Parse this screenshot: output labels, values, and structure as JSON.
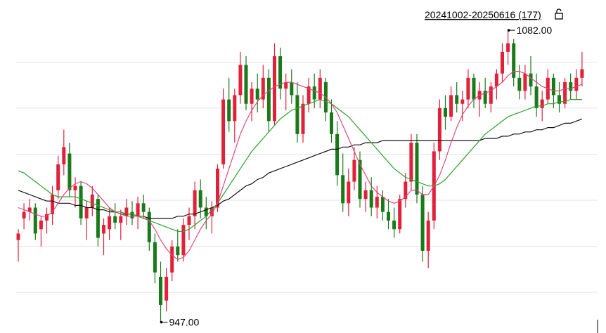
{
  "chart_data": {
    "type": "candlestick",
    "title": "20241002-20250616 (177)",
    "ylim": [
      942,
      1096
    ],
    "ygrid": [
      1067.3,
      1046.0,
      1024.7,
      1003.4,
      982.1,
      960.8
    ],
    "up_color": "#e0213a",
    "down_color": "#1a7a1a",
    "ohlc": [
      [
        985,
        990,
        975,
        988
      ],
      [
        995,
        1002,
        990,
        998
      ],
      [
        998,
        1004,
        994,
        1000
      ],
      [
        1000,
        1002,
        985,
        988
      ],
      [
        990,
        996,
        982,
        994
      ],
      [
        994,
        1000,
        988,
        997
      ],
      [
        997,
        1010,
        992,
        1006
      ],
      [
        1008,
        1024,
        1004,
        1020
      ],
      [
        1020,
        1036,
        1015,
        1028
      ],
      [
        1025,
        1030,
        1005,
        1008
      ],
      [
        1008,
        1014,
        1000,
        1010
      ],
      [
        1010,
        1012,
        992,
        995
      ],
      [
        995,
        1003,
        985,
        1000
      ],
      [
        1000,
        1010,
        996,
        1006
      ],
      [
        1004,
        1006,
        982,
        986
      ],
      [
        988,
        995,
        978,
        992
      ],
      [
        990,
        1000,
        985,
        996
      ],
      [
        996,
        1002,
        990,
        993
      ],
      [
        993,
        999,
        985,
        996
      ],
      [
        996,
        1004,
        992,
        1000
      ],
      [
        998,
        1003,
        992,
        995
      ],
      [
        996,
        1005,
        990,
        1002
      ],
      [
        1002,
        1006,
        995,
        998
      ],
      [
        998,
        1000,
        980,
        984
      ],
      [
        984,
        988,
        965,
        970
      ],
      [
        968,
        975,
        947,
        955
      ],
      [
        957,
        972,
        952,
        968
      ],
      [
        970,
        985,
        966,
        982
      ],
      [
        982,
        990,
        975,
        978
      ],
      [
        978,
        995,
        975,
        992
      ],
      [
        992,
        1000,
        985,
        996
      ],
      [
        996,
        1012,
        990,
        1008
      ],
      [
        1008,
        1013,
        995,
        1000
      ],
      [
        1000,
        1005,
        990,
        996
      ],
      [
        996,
        1003,
        988,
        1000
      ],
      [
        1000,
        1020,
        998,
        1018
      ],
      [
        1020,
        1055,
        1018,
        1050
      ],
      [
        1050,
        1060,
        1035,
        1040
      ],
      [
        1040,
        1055,
        1030,
        1052
      ],
      [
        1052,
        1072,
        1048,
        1066
      ],
      [
        1066,
        1070,
        1045,
        1048
      ],
      [
        1048,
        1058,
        1040,
        1055
      ],
      [
        1055,
        1062,
        1044,
        1050
      ],
      [
        1050,
        1066,
        1046,
        1060
      ],
      [
        1060,
        1064,
        1035,
        1040
      ],
      [
        1040,
        1076,
        1038,
        1070
      ],
      [
        1070,
        1074,
        1050,
        1055
      ],
      [
        1055,
        1062,
        1045,
        1058
      ],
      [
        1058,
        1064,
        1048,
        1052
      ],
      [
        1052,
        1058,
        1030,
        1034
      ],
      [
        1034,
        1052,
        1030,
        1048
      ],
      [
        1048,
        1060,
        1044,
        1056
      ],
      [
        1056,
        1062,
        1046,
        1050
      ],
      [
        1050,
        1064,
        1046,
        1060
      ],
      [
        1058,
        1060,
        1040,
        1044
      ],
      [
        1044,
        1050,
        1030,
        1034
      ],
      [
        1034,
        1040,
        1010,
        1015
      ],
      [
        1015,
        1025,
        998,
        1002
      ],
      [
        1002,
        1018,
        996,
        1012
      ],
      [
        1012,
        1028,
        1008,
        1022
      ],
      [
        1022,
        1026,
        1000,
        1004
      ],
      [
        1004,
        1012,
        998,
        1008
      ],
      [
        1008,
        1014,
        996,
        1000
      ],
      [
        1000,
        1010,
        995,
        1005
      ],
      [
        1005,
        1008,
        994,
        998
      ],
      [
        998,
        1004,
        990,
        994
      ],
      [
        994,
        1000,
        986,
        990
      ],
      [
        990,
        1006,
        988,
        1004
      ],
      [
        1004,
        1016,
        1000,
        1012
      ],
      [
        1012,
        1034,
        1008,
        1030
      ],
      [
        1030,
        1034,
        1002,
        1006
      ],
      [
        1006,
        1010,
        975,
        980
      ],
      [
        980,
        998,
        972,
        994
      ],
      [
        994,
        1030,
        990,
        1026
      ],
      [
        1026,
        1050,
        1022,
        1046
      ],
      [
        1046,
        1052,
        1036,
        1042
      ],
      [
        1042,
        1056,
        1040,
        1052
      ],
      [
        1052,
        1058,
        1044,
        1048
      ],
      [
        1048,
        1054,
        1040,
        1050
      ],
      [
        1050,
        1064,
        1046,
        1060
      ],
      [
        1060,
        1062,
        1046,
        1050
      ],
      [
        1050,
        1058,
        1042,
        1054
      ],
      [
        1054,
        1060,
        1046,
        1048
      ],
      [
        1048,
        1058,
        1044,
        1056
      ],
      [
        1056,
        1064,
        1050,
        1062
      ],
      [
        1062,
        1076,
        1058,
        1072
      ],
      [
        1072,
        1082,
        1066,
        1076
      ],
      [
        1076,
        1078,
        1056,
        1060
      ],
      [
        1060,
        1066,
        1050,
        1054
      ],
      [
        1054,
        1066,
        1050,
        1062
      ],
      [
        1062,
        1070,
        1052,
        1056
      ],
      [
        1056,
        1062,
        1042,
        1046
      ],
      [
        1046,
        1054,
        1040,
        1050
      ],
      [
        1050,
        1064,
        1048,
        1060
      ],
      [
        1060,
        1062,
        1046,
        1052
      ],
      [
        1052,
        1058,
        1044,
        1048
      ],
      [
        1048,
        1060,
        1046,
        1058
      ],
      [
        1058,
        1062,
        1050,
        1054
      ],
      [
        1054,
        1064,
        1050,
        1060
      ],
      [
        1060,
        1072,
        1056,
        1064
      ]
    ],
    "series": [
      {
        "color": "#111111",
        "values": [
          1008,
          1007,
          1006,
          1005,
          1004,
          1003,
          1003,
          1002,
          1002,
          1002,
          1001,
          1001,
          1000,
          1000,
          999,
          999,
          998,
          998,
          997,
          997,
          997,
          996,
          996,
          995,
          995,
          995,
          995,
          995,
          996,
          996,
          997,
          997,
          998,
          999,
          1000,
          1001,
          1003,
          1004,
          1006,
          1008,
          1010,
          1011,
          1013,
          1014,
          1016,
          1017,
          1018,
          1019,
          1020,
          1021,
          1022,
          1023,
          1024,
          1025,
          1026,
          1027,
          1027,
          1028,
          1028,
          1029,
          1029,
          1030,
          1030,
          1030,
          1031,
          1031,
          1031,
          1031,
          1031,
          1031,
          1031,
          1031,
          1031,
          1031,
          1031,
          1031,
          1031,
          1031,
          1031,
          1031,
          1031,
          1031,
          1032,
          1032,
          1032,
          1033,
          1033,
          1034,
          1034,
          1035,
          1035,
          1036,
          1036,
          1037,
          1037,
          1038,
          1039,
          1039,
          1040,
          1041
        ]
      },
      {
        "color": "#2aa02a",
        "values": [
          1017,
          1016,
          1014,
          1012,
          1010,
          1008,
          1006,
          1005,
          1005,
          1005,
          1005,
          1004,
          1003,
          1002,
          1001,
          1000,
          999,
          998,
          998,
          997,
          997,
          996,
          995,
          994,
          993,
          992,
          991,
          990,
          989,
          989,
          990,
          992,
          994,
          996,
          999,
          1002,
          1006,
          1010,
          1014,
          1018,
          1022,
          1026,
          1029,
          1032,
          1035,
          1038,
          1041,
          1043,
          1045,
          1046,
          1047,
          1048,
          1049,
          1050,
          1049,
          1048,
          1046,
          1044,
          1042,
          1039,
          1036,
          1033,
          1030,
          1027,
          1024,
          1021,
          1018,
          1016,
          1014,
          1013,
          1012,
          1011,
          1010,
          1010,
          1011,
          1013,
          1016,
          1019,
          1022,
          1025,
          1028,
          1031,
          1034,
          1036,
          1038,
          1040,
          1042,
          1043,
          1044,
          1045,
          1046,
          1047,
          1047,
          1048,
          1048,
          1049,
          1049,
          1050,
          1050,
          1050
        ]
      },
      {
        "color": "#e0487a",
        "values": [
          1000,
          999,
          998,
          997,
          996,
          996,
          998,
          1002,
          1006,
          1009,
          1011,
          1012,
          1011,
          1009,
          1006,
          1003,
          1000,
          998,
          997,
          996,
          996,
          996,
          996,
          994,
          990,
          985,
          981,
          978,
          976,
          977,
          980,
          985,
          990,
          994,
          997,
          1002,
          1010,
          1018,
          1026,
          1034,
          1040,
          1045,
          1049,
          1052,
          1054,
          1056,
          1057,
          1058,
          1058,
          1057,
          1056,
          1055,
          1054,
          1053,
          1051,
          1048,
          1044,
          1038,
          1032,
          1026,
          1020,
          1015,
          1010,
          1007,
          1005,
          1003,
          1002,
          1003,
          1005,
          1008,
          1008,
          1006,
          1006,
          1010,
          1015,
          1022,
          1030,
          1037,
          1043,
          1047,
          1050,
          1052,
          1053,
          1054,
          1056,
          1058,
          1061,
          1063,
          1063,
          1062,
          1060,
          1058,
          1056,
          1055,
          1054,
          1054,
          1055,
          1055,
          1056,
          1057
        ]
      }
    ],
    "annotations": [
      {
        "value": 1082,
        "label": "1082.00"
      },
      {
        "value": 947,
        "label": "947.00"
      }
    ]
  }
}
